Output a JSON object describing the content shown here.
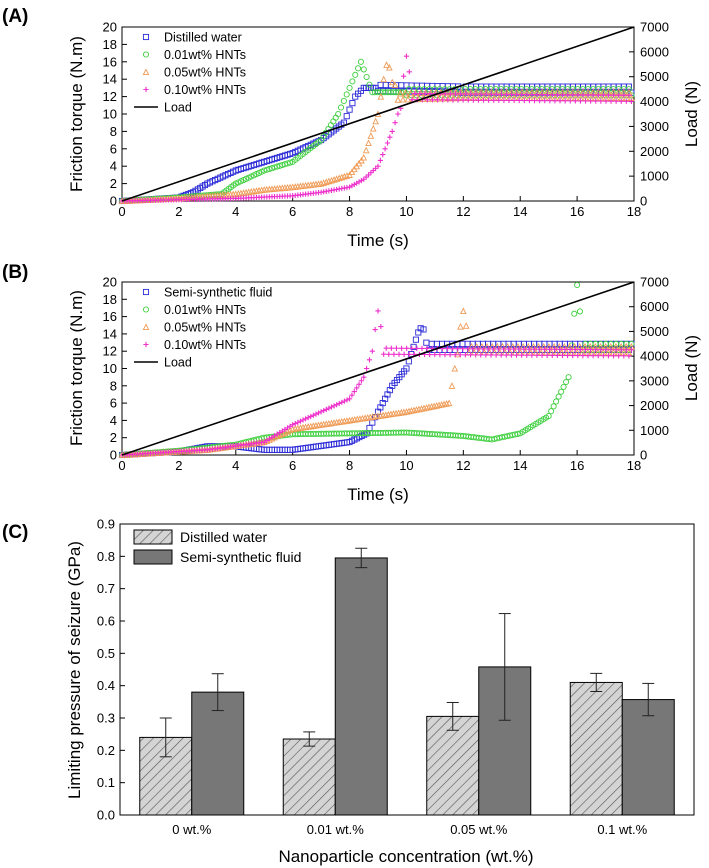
{
  "chart_data": [
    {
      "panel": "(A)",
      "type": "scatter",
      "xlabel": "Time (s)",
      "ylabel": "Friction torque (N.m)",
      "ylabel_right": "Load (N)",
      "xlim": [
        0,
        18
      ],
      "ylim": [
        0,
        20
      ],
      "ylim_right": [
        0,
        7000
      ],
      "x_ticks": [
        0,
        2,
        4,
        6,
        8,
        10,
        12,
        14,
        16,
        18
      ],
      "y_ticks": [
        0,
        2,
        4,
        6,
        8,
        10,
        12,
        14,
        16,
        18,
        20
      ],
      "y_right_ticks": [
        0,
        1000,
        2000,
        3000,
        4000,
        5000,
        6000,
        7000
      ],
      "legend_position": "top-left",
      "series": [
        {
          "name": "Distilled water",
          "marker": "square",
          "color": "#2b2bd8",
          "points": [
            [
              0,
              0
            ],
            [
              1,
              0.2
            ],
            [
              2,
              0.4
            ],
            [
              2.5,
              1
            ],
            [
              3,
              2
            ],
            [
              4,
              3.5
            ],
            [
              5,
              4.5
            ],
            [
              6,
              5.5
            ],
            [
              7,
              7
            ],
            [
              7.8,
              9
            ],
            [
              8.2,
              12
            ],
            [
              8.5,
              13
            ],
            [
              9,
              13
            ],
            [
              12,
              12.8
            ],
            [
              18,
              12.8
            ]
          ]
        },
        {
          "name": "0.01wt% HNTs",
          "marker": "circle",
          "color": "#3ecf3e",
          "points": [
            [
              0,
              0
            ],
            [
              1,
              0.2
            ],
            [
              2,
              0.4
            ],
            [
              3.5,
              0.8
            ],
            [
              4,
              2
            ],
            [
              5,
              3.5
            ],
            [
              6,
              4.5
            ],
            [
              7,
              7
            ],
            [
              7.6,
              10
            ],
            [
              8,
              13
            ],
            [
              8.4,
              16
            ],
            [
              8.8,
              12.5
            ],
            [
              10,
              12.5
            ],
            [
              18,
              12.5
            ]
          ]
        },
        {
          "name": "0.05wt% HNTs",
          "marker": "triangle",
          "color": "#ef9a55",
          "points": [
            [
              0,
              0
            ],
            [
              2,
              0.3
            ],
            [
              4,
              0.8
            ],
            [
              5,
              1.3
            ],
            [
              6,
              1.6
            ],
            [
              7,
              2
            ],
            [
              8,
              3
            ],
            [
              8.5,
              5
            ],
            [
              9,
              10
            ],
            [
              9.3,
              16
            ],
            [
              9.7,
              12
            ],
            [
              12,
              12.2
            ],
            [
              18,
              12.2
            ]
          ]
        },
        {
          "name": "0.10wt% HNTs",
          "marker": "plus",
          "color": "#ee30cc",
          "points": [
            [
              0,
              0
            ],
            [
              4,
              0.3
            ],
            [
              6,
              0.6
            ],
            [
              7,
              1
            ],
            [
              8,
              1.6
            ],
            [
              8.5,
              2.5
            ],
            [
              9,
              4
            ],
            [
              9.5,
              8
            ],
            [
              9.8,
              11
            ],
            [
              10,
              17
            ],
            [
              10.2,
              12
            ],
            [
              18,
              11.8
            ]
          ]
        },
        {
          "name": "Load",
          "type": "line",
          "color": "#000000",
          "axis": "right",
          "points": [
            [
              0,
              0
            ],
            [
              18,
              7000
            ]
          ]
        }
      ]
    },
    {
      "panel": "(B)",
      "type": "scatter",
      "xlabel": "Time (s)",
      "ylabel": "Friction torque (N.m)",
      "ylabel_right": "Load (N)",
      "xlim": [
        0,
        18
      ],
      "ylim": [
        0,
        20
      ],
      "ylim_right": [
        0,
        7000
      ],
      "x_ticks": [
        0,
        2,
        4,
        6,
        8,
        10,
        12,
        14,
        16,
        18
      ],
      "y_ticks": [
        0,
        2,
        4,
        6,
        8,
        10,
        12,
        14,
        16,
        18,
        20
      ],
      "y_right_ticks": [
        0,
        1000,
        2000,
        3000,
        4000,
        5000,
        6000,
        7000
      ],
      "legend_position": "top-left",
      "series": [
        {
          "name": "Semi-synthetic fluid",
          "marker": "square",
          "color": "#2b2bd8",
          "points": [
            [
              0,
              0
            ],
            [
              2,
              0.4
            ],
            [
              3,
              1
            ],
            [
              4,
              1
            ],
            [
              5,
              0.6
            ],
            [
              6,
              0.6
            ],
            [
              8,
              1.5
            ],
            [
              8.6,
              2.5
            ],
            [
              9,
              5
            ],
            [
              9.5,
              8
            ],
            [
              10,
              10
            ],
            [
              10.5,
              15
            ],
            [
              10.8,
              12.5
            ],
            [
              18,
              12.5
            ]
          ]
        },
        {
          "name": "0.01wt% HNTs",
          "marker": "circle",
          "color": "#3ecf3e",
          "points": [
            [
              0,
              0
            ],
            [
              2,
              0.5
            ],
            [
              4,
              1.2
            ],
            [
              5,
              2
            ],
            [
              6,
              2.4
            ],
            [
              8,
              2.5
            ],
            [
              10,
              2.6
            ],
            [
              12,
              2.2
            ],
            [
              13,
              1.8
            ],
            [
              14,
              2.5
            ],
            [
              15,
              4.5
            ],
            [
              15.7,
              9
            ],
            [
              16,
              20
            ],
            [
              16.2,
              12.5
            ],
            [
              18,
              12.5
            ]
          ]
        },
        {
          "name": "0.05wt% HNTs",
          "marker": "triangle",
          "color": "#ef9a55",
          "points": [
            [
              0,
              0
            ],
            [
              3,
              0.6
            ],
            [
              5,
              1.5
            ],
            [
              6,
              3
            ],
            [
              8,
              4
            ],
            [
              10,
              5
            ],
            [
              11.5,
              6
            ],
            [
              11.8,
              12
            ],
            [
              12,
              17
            ],
            [
              12.2,
              12.2
            ],
            [
              18,
              12.2
            ]
          ]
        },
        {
          "name": "0.10wt% HNTs",
          "marker": "plus",
          "color": "#ee30cc",
          "points": [
            [
              0,
              0
            ],
            [
              3,
              0.6
            ],
            [
              5,
              1.5
            ],
            [
              6,
              3.5
            ],
            [
              7,
              5
            ],
            [
              8,
              6.5
            ],
            [
              8.5,
              9
            ],
            [
              8.8,
              12
            ],
            [
              9,
              17
            ],
            [
              9.2,
              12
            ],
            [
              18,
              11.8
            ]
          ]
        },
        {
          "name": "Load",
          "type": "line",
          "color": "#000000",
          "axis": "right",
          "points": [
            [
              0,
              0
            ],
            [
              18,
              7000
            ]
          ]
        }
      ]
    },
    {
      "panel": "(C)",
      "type": "bar",
      "xlabel": "Nanoparticle concentration (wt.%)",
      "ylabel": "Limiting pressure of seizure (GPa)",
      "ylim": [
        0,
        0.9
      ],
      "y_ticks": [
        0.0,
        0.1,
        0.2,
        0.3,
        0.4,
        0.5,
        0.6,
        0.7,
        0.8,
        0.9
      ],
      "legend_position": "top-left",
      "categories": [
        "0 wt.%",
        "0.01 wt.%",
        "0.05 wt.%",
        "0.1 wt.%"
      ],
      "series": [
        {
          "name": "Distilled water",
          "fill": "hatched-light-gray",
          "values": [
            0.24,
            0.235,
            0.305,
            0.41
          ],
          "errors": [
            0.06,
            0.022,
            0.043,
            0.028
          ]
        },
        {
          "name": "Semi-synthetic fluid",
          "fill": "#777777",
          "values": [
            0.38,
            0.795,
            0.458,
            0.357
          ],
          "errors": [
            0.057,
            0.03,
            0.165,
            0.05
          ]
        }
      ]
    }
  ]
}
